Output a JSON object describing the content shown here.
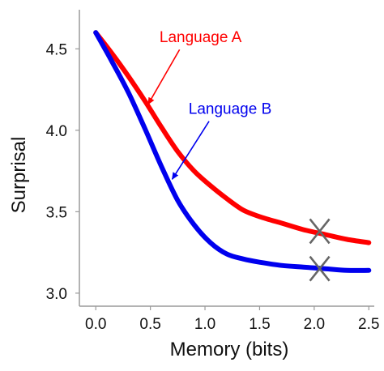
{
  "chart_data": {
    "type": "line",
    "xlabel": "Memory (bits)",
    "ylabel": "Surprisal",
    "xlim": [
      -0.15,
      2.55
    ],
    "ylim": [
      2.92,
      4.74
    ],
    "x_ticks": [
      "0.0",
      "0.5",
      "1.0",
      "1.5",
      "2.0",
      "2.5"
    ],
    "y_ticks": [
      "3.0",
      "3.5",
      "4.0",
      "4.5"
    ],
    "grid": false,
    "series": [
      {
        "name": "Language A",
        "color": "#ff0000",
        "x": [
          0.0,
          0.15,
          0.3,
          0.45,
          0.6,
          0.75,
          0.9,
          1.05,
          1.2,
          1.35,
          1.5,
          1.7,
          1.9,
          2.1,
          2.3,
          2.5
        ],
        "y": [
          4.6,
          4.47,
          4.33,
          4.18,
          4.02,
          3.87,
          3.75,
          3.66,
          3.58,
          3.51,
          3.47,
          3.43,
          3.39,
          3.36,
          3.33,
          3.31
        ]
      },
      {
        "name": "Language B",
        "color": "#0000ee",
        "x": [
          0.0,
          0.15,
          0.3,
          0.45,
          0.6,
          0.75,
          0.9,
          1.05,
          1.2,
          1.35,
          1.5,
          1.7,
          1.9,
          2.1,
          2.3,
          2.5
        ],
        "y": [
          4.6,
          4.42,
          4.23,
          4.01,
          3.78,
          3.57,
          3.42,
          3.31,
          3.24,
          3.21,
          3.19,
          3.17,
          3.16,
          3.15,
          3.14,
          3.14
        ]
      }
    ],
    "markers": [
      {
        "symbol": "×",
        "x": 2.05,
        "y": 3.38,
        "color": "#666666"
      },
      {
        "symbol": "×",
        "x": 2.05,
        "y": 3.15,
        "color": "#666666"
      }
    ],
    "annotations": [
      {
        "text": "Language A",
        "series": 0,
        "color": "#ff0000",
        "text_x": 0.96,
        "text_y": 4.54,
        "arrow_to_x": 0.48,
        "arrow_to_y": 4.16
      },
      {
        "text": "Language B",
        "series": 1,
        "color": "#0000ee",
        "text_x": 1.23,
        "text_y": 4.1,
        "arrow_to_x": 0.7,
        "arrow_to_y": 3.7
      }
    ]
  }
}
